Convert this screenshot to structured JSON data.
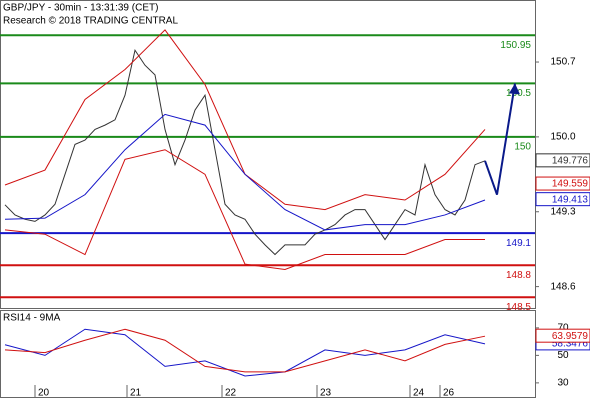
{
  "chart_data": [
    {
      "type": "line",
      "title": "GBP/JPY - 30min - 13:31:39 (CET)",
      "subtitle": "Research © 2018 TRADING CENTRAL",
      "xlim": [
        -0.5,
        53
      ],
      "xticks": [
        {
          "value": 3,
          "label": "20"
        },
        {
          "value": 12.2,
          "label": "21"
        },
        {
          "value": 21.7,
          "label": "22"
        },
        {
          "value": 31.2,
          "label": "23"
        },
        {
          "value": 40.5,
          "label": "24"
        },
        {
          "value": 43.5,
          "label": "26"
        }
      ],
      "ylim": [
        148.4,
        151.28
      ],
      "yticks": [
        148.6,
        149.3,
        {
          "value": 150,
          "label": "150.0"
        },
        150.7
      ],
      "levels": [
        {
          "value": 150.95,
          "color": "#1a8a1a"
        },
        {
          "value": 150.5,
          "color": "#1a8a1a"
        },
        {
          "value": 150,
          "color": "#1a8a1a"
        },
        {
          "value": 149.1,
          "color": "#1515c8"
        },
        {
          "value": 148.8,
          "color": "#d01010"
        },
        {
          "value": 148.5,
          "color": "#d01010"
        }
      ],
      "markers": [
        {
          "value": 149.776,
          "color": "#333333"
        },
        {
          "value": 149.559,
          "color": "#d01010"
        },
        {
          "value": 149.413,
          "color": "#1515c8"
        }
      ],
      "series": [
        {
          "color": "#333333",
          "x": [
            0,
            1,
            2,
            3,
            4,
            5,
            6,
            7,
            8,
            9,
            10,
            11,
            12,
            13,
            14,
            15,
            16,
            17,
            18,
            19,
            20,
            21,
            22,
            23,
            24,
            25,
            26,
            27,
            28,
            29,
            30,
            31,
            32,
            33,
            34,
            35,
            36,
            37,
            38,
            39,
            40,
            41,
            42,
            43,
            44,
            45,
            46,
            47,
            48
          ],
          "values": [
            149.365,
            149.27,
            149.23,
            149.21,
            149.27,
            149.37,
            149.65,
            149.93,
            149.97,
            150.07,
            150.11,
            150.16,
            150.39,
            150.81,
            150.67,
            150.58,
            150.07,
            149.74,
            149.97,
            150.25,
            150.39,
            149.88,
            149.37,
            149.27,
            149.23,
            149.09,
            148.99,
            148.9,
            148.99,
            148.99,
            148.99,
            149.09,
            149.13,
            149.18,
            149.27,
            149.32,
            149.32,
            149.18,
            149.04,
            149.18,
            149.32,
            149.27,
            149.74,
            149.46,
            149.32,
            149.27,
            149.41,
            149.74,
            149.776
          ]
        },
        {
          "color": "#d01010",
          "x": [
            0,
            4,
            8,
            12,
            16,
            20,
            24,
            28,
            32,
            36,
            40,
            44,
            48
          ],
          "values": [
            149.55,
            149.69,
            150.35,
            150.63,
            151.0,
            150.49,
            149.65,
            149.37,
            149.32,
            149.46,
            149.41,
            149.65,
            150.07
          ]
        },
        {
          "color": "#d01010",
          "x": [
            0,
            4,
            8,
            12,
            16,
            20,
            24,
            28,
            32,
            36,
            40,
            44,
            48
          ],
          "values": [
            149.13,
            149.09,
            148.9,
            149.79,
            149.88,
            149.65,
            148.81,
            148.76,
            148.9,
            148.9,
            148.9,
            149.04,
            149.04
          ]
        },
        {
          "color": "#1515c8",
          "x": [
            0,
            4,
            8,
            12,
            16,
            20,
            24,
            28,
            32,
            36,
            40,
            44,
            48
          ],
          "values": [
            149.23,
            149.24,
            149.46,
            149.88,
            150.21,
            150.11,
            149.65,
            149.32,
            149.13,
            149.18,
            149.18,
            149.27,
            149.41
          ]
        },
        {
          "color": "#0a1a8a",
          "x": [
            48,
            49.2,
            51
          ],
          "values": [
            149.776,
            149.46,
            150.5
          ]
        }
      ]
    },
    {
      "type": "line",
      "title": "RSI14 - 9MA",
      "xlim": [
        -0.5,
        53
      ],
      "ylim": [
        19,
        83
      ],
      "yticks": [
        30,
        50,
        70
      ],
      "series": [
        {
          "color": "#1515c8",
          "x": [
            0,
            4,
            8,
            12,
            16,
            20,
            24,
            28,
            32,
            36,
            40,
            44,
            48
          ],
          "values": [
            57.7,
            50,
            69,
            65,
            42,
            46,
            35,
            38,
            54,
            50,
            54,
            65,
            58.3476
          ]
        },
        {
          "color": "#d01010",
          "x": [
            0,
            4,
            8,
            12,
            16,
            20,
            24,
            28,
            32,
            36,
            40,
            44,
            48
          ],
          "values": [
            54,
            52,
            61,
            69,
            61,
            42,
            38,
            38,
            46,
            54,
            46,
            58,
            63.9579
          ]
        }
      ]
    }
  ]
}
